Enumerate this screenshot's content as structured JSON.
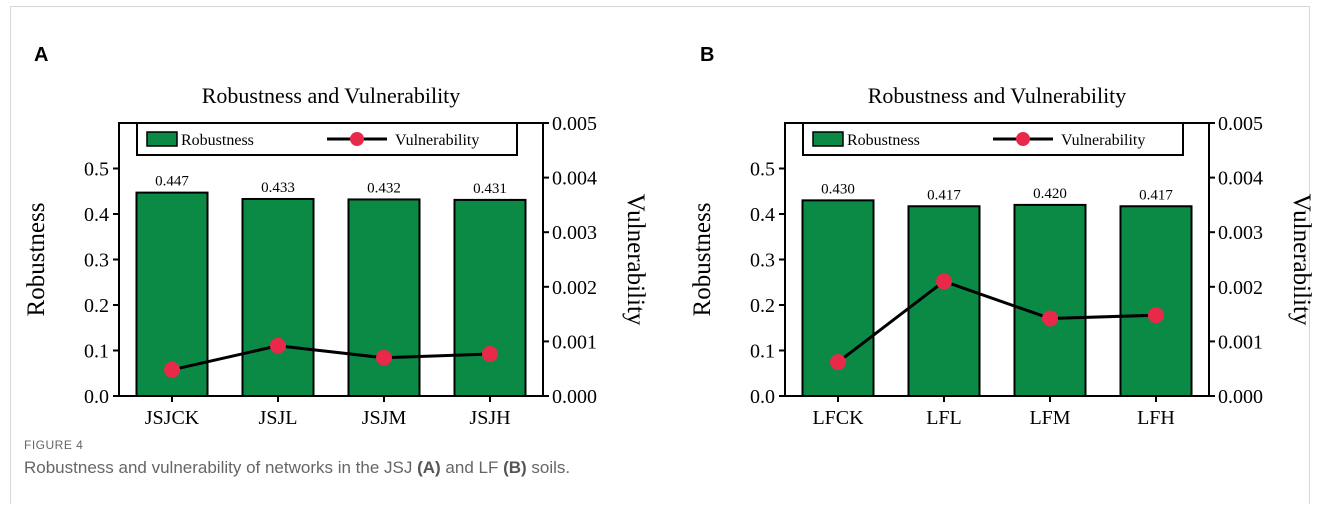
{
  "figure": {
    "label": "FIGURE 4",
    "caption_prefix": "Robustness and vulnerability of networks in the JSJ ",
    "caption_mid1": " and LF ",
    "caption_suffix": " soils.",
    "ref_a": "(A)",
    "ref_b": "(B)"
  },
  "colors": {
    "bar": "#0b8a45",
    "line": "#000000",
    "marker": "#e8294a"
  },
  "chart_data": [
    {
      "panel": "A",
      "type": "bar",
      "title": "Robustness and Vulnerability",
      "categories": [
        "JSJCK",
        "JSJL",
        "JSJM",
        "JSJH"
      ],
      "ylabel": "Robustness",
      "y2label": "Vulnerability",
      "ylim": [
        0,
        0.6
      ],
      "y2lim": [
        0,
        0.005
      ],
      "yticks": [
        "0.0",
        "0.1",
        "0.2",
        "0.3",
        "0.4",
        "0.5"
      ],
      "y2ticks": [
        "0.000",
        "0.001",
        "0.002",
        "0.003",
        "0.004",
        "0.005"
      ],
      "legend": [
        "Robustness",
        "Vulnerability"
      ],
      "legend_position": "top",
      "series": [
        {
          "name": "Robustness",
          "kind": "bar",
          "values": [
            0.447,
            0.433,
            0.432,
            0.431
          ],
          "labels": [
            "0.447",
            "0.433",
            "0.432",
            "0.431"
          ]
        },
        {
          "name": "Vulnerability",
          "kind": "line",
          "axis": "right",
          "values": [
            0.00048,
            0.00092,
            0.0007,
            0.00077
          ]
        }
      ]
    },
    {
      "panel": "B",
      "type": "bar",
      "title": "Robustness and Vulnerability",
      "categories": [
        "LFCK",
        "LFL",
        "LFM",
        "LFH"
      ],
      "ylabel": "Robustness",
      "y2label": "Vulnerability",
      "ylim": [
        0,
        0.6
      ],
      "y2lim": [
        0,
        0.005
      ],
      "yticks": [
        "0.0",
        "0.1",
        "0.2",
        "0.3",
        "0.4",
        "0.5"
      ],
      "y2ticks": [
        "0.000",
        "0.001",
        "0.002",
        "0.003",
        "0.004",
        "0.005"
      ],
      "legend": [
        "Robustness",
        "Vulnerability"
      ],
      "legend_position": "top",
      "series": [
        {
          "name": "Robustness",
          "kind": "bar",
          "values": [
            0.43,
            0.417,
            0.42,
            0.417
          ],
          "labels": [
            "0.430",
            "0.417",
            "0.420",
            "0.417"
          ]
        },
        {
          "name": "Vulnerability",
          "kind": "line",
          "axis": "right",
          "values": [
            0.00062,
            0.0021,
            0.00142,
            0.00148
          ]
        }
      ]
    }
  ],
  "panels": {
    "a_letter": "A",
    "b_letter": "B"
  }
}
